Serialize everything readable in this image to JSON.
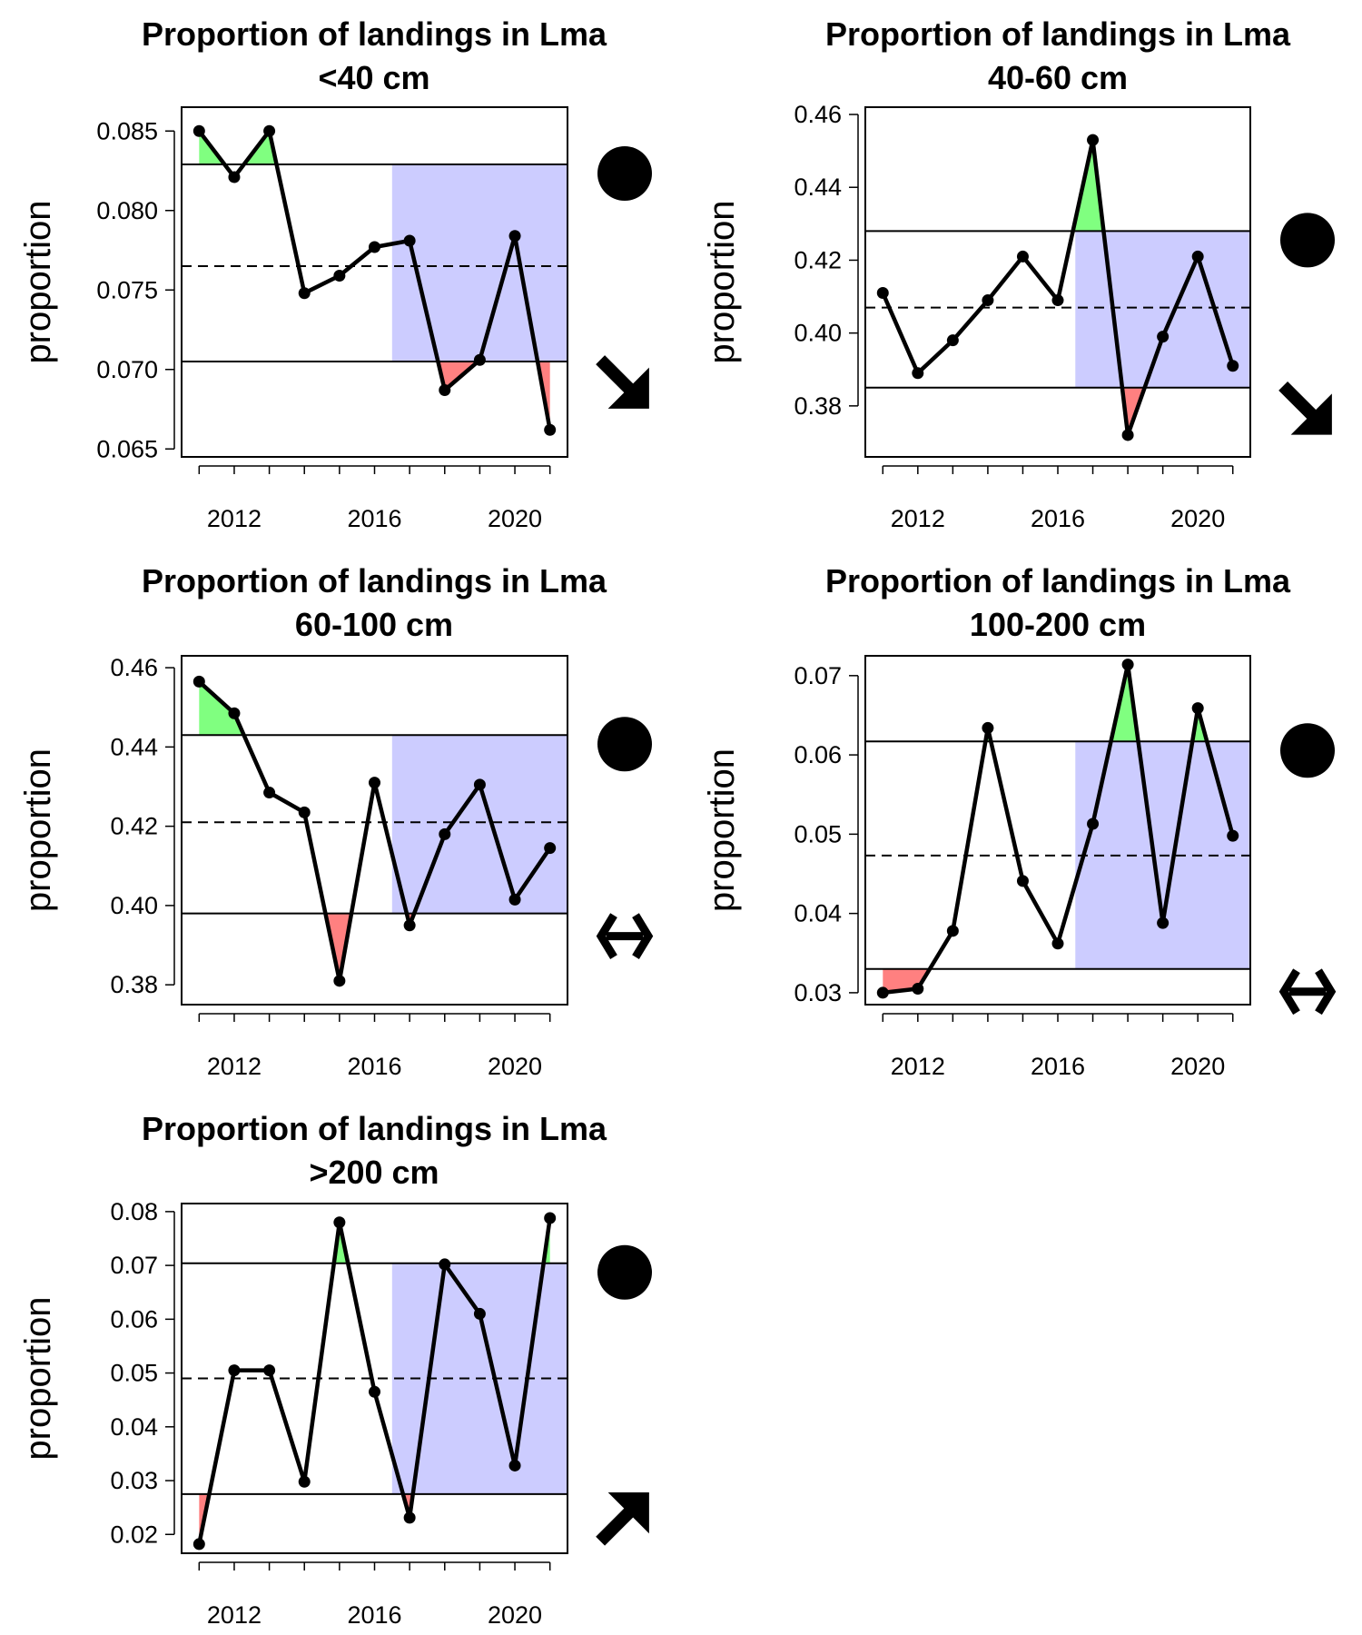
{
  "chart_data": [
    {
      "type": "line",
      "title": "Proportion of landings in Lma",
      "subtitle": "<40 cm",
      "ylabel": "proportion",
      "ylim": [
        0.0645,
        0.0865
      ],
      "yticks": [
        0.065,
        0.07,
        0.075,
        0.08,
        0.085
      ],
      "ytick_labels": [
        "0.065",
        "0.070",
        "0.075",
        "0.080",
        "0.085"
      ],
      "xticks": [
        2012,
        2016,
        2020
      ],
      "xtick_labels": [
        "2012",
        "2016",
        "2020"
      ],
      "x": [
        2011,
        2012,
        2013,
        2014,
        2015,
        2016,
        2017,
        2018,
        2019,
        2020,
        2021
      ],
      "values": [
        0.085,
        0.0821,
        0.085,
        0.0748,
        0.0759,
        0.0777,
        0.0781,
        0.0687,
        0.0706,
        0.0784,
        0.0662
      ],
      "mean": 0.0765,
      "upper": 0.0829,
      "lower": 0.0705,
      "recent_period": [
        2016.5,
        2021.5
      ],
      "status_symbol": "filled-circle",
      "trend_symbol": "arrow-down-right",
      "colors": {
        "above": "#80ff80",
        "below": "#ff8080",
        "recent": "#ccccff"
      }
    },
    {
      "type": "line",
      "title": "Proportion of landings in Lma",
      "subtitle": "40-60 cm",
      "ylabel": "proportion",
      "ylim": [
        0.366,
        0.462
      ],
      "yticks": [
        0.38,
        0.4,
        0.42,
        0.44,
        0.46
      ],
      "ytick_labels": [
        "0.38",
        "0.40",
        "0.42",
        "0.44",
        "0.46"
      ],
      "xticks": [
        2012,
        2016,
        2020
      ],
      "xtick_labels": [
        "2012",
        "2016",
        "2020"
      ],
      "x": [
        2011,
        2012,
        2013,
        2014,
        2015,
        2016,
        2017,
        2018,
        2019,
        2020,
        2021
      ],
      "values": [
        0.411,
        0.389,
        0.398,
        0.409,
        0.421,
        0.409,
        0.453,
        0.372,
        0.399,
        0.421,
        0.391
      ],
      "mean": 0.407,
      "upper": 0.428,
      "lower": 0.385,
      "recent_period": [
        2016.5,
        2021.5
      ],
      "status_symbol": "filled-circle",
      "trend_symbol": "arrow-down-right",
      "colors": {
        "above": "#80ff80",
        "below": "#ff8080",
        "recent": "#ccccff"
      }
    },
    {
      "type": "line",
      "title": "Proportion of landings in Lma",
      "subtitle": "60-100 cm",
      "ylabel": "proportion",
      "ylim": [
        0.375,
        0.463
      ],
      "yticks": [
        0.38,
        0.4,
        0.42,
        0.44,
        0.46
      ],
      "ytick_labels": [
        "0.38",
        "0.40",
        "0.42",
        "0.44",
        "0.46"
      ],
      "xticks": [
        2012,
        2016,
        2020
      ],
      "xtick_labels": [
        "2012",
        "2016",
        "2020"
      ],
      "x": [
        2011,
        2012,
        2013,
        2014,
        2015,
        2016,
        2017,
        2018,
        2019,
        2020,
        2021
      ],
      "values": [
        0.4565,
        0.4485,
        0.4285,
        0.4235,
        0.381,
        0.431,
        0.395,
        0.418,
        0.4305,
        0.4015,
        0.4145
      ],
      "mean": 0.421,
      "upper": 0.443,
      "lower": 0.398,
      "recent_period": [
        2016.5,
        2021.5
      ],
      "status_symbol": "filled-circle",
      "trend_symbol": "arrow-left-right",
      "colors": {
        "above": "#80ff80",
        "below": "#ff8080",
        "recent": "#ccccff"
      }
    },
    {
      "type": "line",
      "title": "Proportion of landings in Lma",
      "subtitle": "100-200 cm",
      "ylabel": "proportion",
      "ylim": [
        0.0285,
        0.0725
      ],
      "yticks": [
        0.03,
        0.04,
        0.05,
        0.06,
        0.07
      ],
      "ytick_labels": [
        "0.03",
        "0.04",
        "0.05",
        "0.06",
        "0.07"
      ],
      "xticks": [
        2012,
        2016,
        2020
      ],
      "xtick_labels": [
        "2012",
        "2016",
        "2020"
      ],
      "x": [
        2011,
        2012,
        2013,
        2014,
        2015,
        2016,
        2017,
        2018,
        2019,
        2020,
        2021
      ],
      "values": [
        0.03,
        0.0305,
        0.0378,
        0.0634,
        0.0441,
        0.0362,
        0.0513,
        0.0714,
        0.0388,
        0.0659,
        0.0498
      ],
      "mean": 0.0473,
      "upper": 0.0617,
      "lower": 0.033,
      "recent_period": [
        2016.5,
        2021.5
      ],
      "status_symbol": "filled-circle",
      "trend_symbol": "arrow-left-right",
      "colors": {
        "above": "#80ff80",
        "below": "#ff8080",
        "recent": "#ccccff"
      }
    },
    {
      "type": "line",
      "title": "Proportion of landings in Lma",
      "subtitle": ">200 cm",
      "ylabel": "proportion",
      "ylim": [
        0.0165,
        0.0815
      ],
      "yticks": [
        0.02,
        0.03,
        0.04,
        0.05,
        0.06,
        0.07,
        0.08
      ],
      "ytick_labels": [
        "0.02",
        "0.03",
        "0.04",
        "0.05",
        "0.06",
        "0.07",
        "0.08"
      ],
      "xticks": [
        2012,
        2016,
        2020
      ],
      "xtick_labels": [
        "2012",
        "2016",
        "2020"
      ],
      "x": [
        2011,
        2012,
        2013,
        2014,
        2015,
        2016,
        2017,
        2018,
        2019,
        2020,
        2021
      ],
      "values": [
        0.0182,
        0.0505,
        0.0505,
        0.0298,
        0.078,
        0.0465,
        0.0231,
        0.0702,
        0.061,
        0.0328,
        0.0788
      ],
      "mean": 0.049,
      "upper": 0.0704,
      "lower": 0.0275,
      "recent_period": [
        2016.5,
        2021.5
      ],
      "status_symbol": "filled-circle",
      "trend_symbol": "arrow-up-right",
      "colors": {
        "above": "#80ff80",
        "below": "#ff8080",
        "recent": "#ccccff"
      }
    }
  ]
}
